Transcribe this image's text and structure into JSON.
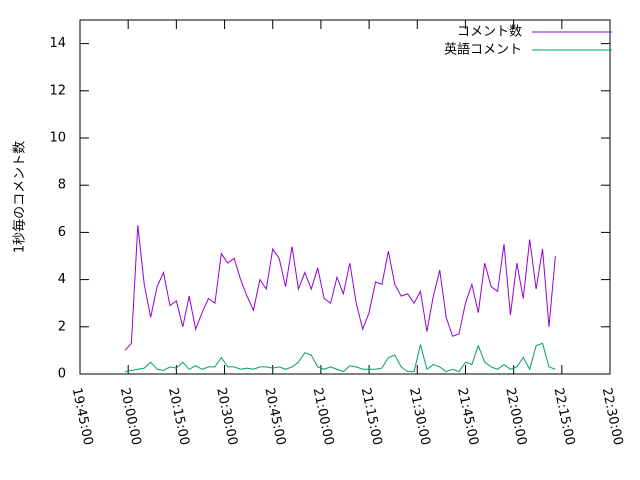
{
  "chart_data": {
    "type": "line",
    "y_label": "1秒毎のコメント数",
    "x": [
      "19:59:00",
      "20:01:00",
      "20:03:00",
      "20:05:00",
      "20:07:00",
      "20:09:00",
      "20:11:00",
      "20:13:00",
      "20:15:00",
      "20:17:00",
      "20:19:00",
      "20:21:00",
      "20:23:00",
      "20:25:00",
      "20:27:00",
      "20:29:00",
      "20:31:00",
      "20:33:00",
      "20:35:00",
      "20:37:00",
      "20:39:00",
      "20:41:00",
      "20:43:00",
      "20:45:00",
      "20:47:00",
      "20:49:00",
      "20:51:00",
      "20:53:00",
      "20:55:00",
      "20:57:00",
      "20:59:00",
      "21:01:00",
      "21:03:00",
      "21:05:00",
      "21:07:00",
      "21:09:00",
      "21:11:00",
      "21:13:00",
      "21:15:00",
      "21:17:00",
      "21:19:00",
      "21:21:00",
      "21:23:00",
      "21:25:00",
      "21:27:00",
      "21:29:00",
      "21:31:00",
      "21:33:00",
      "21:35:00",
      "21:37:00",
      "21:39:00",
      "21:41:00",
      "21:43:00",
      "21:45:00",
      "21:47:00",
      "21:49:00",
      "21:51:00",
      "21:53:00",
      "21:55:00",
      "21:57:00",
      "21:59:00",
      "22:01:00",
      "22:03:00",
      "22:05:00",
      "22:07:00",
      "22:09:00",
      "22:11:00",
      "22:13:00"
    ],
    "series": [
      {
        "name": "コメント数",
        "color": "#9400d3",
        "values": [
          1.0,
          1.3,
          6.3,
          3.8,
          2.4,
          3.7,
          4.3,
          2.9,
          3.1,
          2.0,
          3.3,
          1.9,
          2.6,
          3.2,
          3.0,
          5.1,
          4.7,
          4.9,
          4.0,
          3.3,
          2.7,
          4.0,
          3.6,
          5.3,
          4.9,
          3.7,
          5.4,
          3.6,
          4.3,
          3.6,
          4.5,
          3.2,
          3.0,
          4.1,
          3.4,
          4.7,
          3.0,
          1.9,
          2.6,
          3.9,
          3.8,
          5.2,
          3.8,
          3.3,
          3.4,
          3.0,
          3.5,
          1.8,
          3.3,
          4.4,
          2.4,
          1.6,
          1.7,
          3.0,
          3.8,
          2.6,
          4.7,
          3.7,
          3.5,
          5.5,
          2.5,
          4.7,
          3.2,
          5.7,
          3.6,
          5.3,
          2.0,
          5.0
        ]
      },
      {
        "name": "英語コメント",
        "color": "#009e73",
        "values": [
          0.1,
          0.15,
          0.2,
          0.25,
          0.5,
          0.2,
          0.15,
          0.3,
          0.25,
          0.5,
          0.2,
          0.35,
          0.2,
          0.3,
          0.3,
          0.7,
          0.3,
          0.3,
          0.2,
          0.25,
          0.2,
          0.3,
          0.3,
          0.25,
          0.3,
          0.2,
          0.3,
          0.5,
          0.9,
          0.8,
          0.3,
          0.2,
          0.3,
          0.2,
          0.1,
          0.35,
          0.3,
          0.2,
          0.2,
          0.2,
          0.25,
          0.7,
          0.8,
          0.3,
          0.1,
          0.1,
          1.25,
          0.2,
          0.4,
          0.3,
          0.1,
          0.2,
          0.1,
          0.5,
          0.4,
          1.2,
          0.5,
          0.3,
          0.2,
          0.4,
          0.2,
          0.3,
          0.7,
          0.2,
          1.2,
          1.3,
          0.3,
          0.2
        ]
      }
    ],
    "xlim": [
      "19:45:00",
      "22:30:00"
    ],
    "xticks": [
      "19:45:00",
      "20:00:00",
      "20:15:00",
      "20:30:00",
      "20:45:00",
      "21:00:00",
      "21:15:00",
      "21:30:00",
      "21:45:00",
      "22:00:00",
      "22:15:00",
      "22:30:00"
    ],
    "ylim": [
      0,
      15
    ],
    "yticks": [
      0,
      2,
      4,
      6,
      8,
      10,
      12,
      14
    ],
    "legend": "top-right"
  }
}
